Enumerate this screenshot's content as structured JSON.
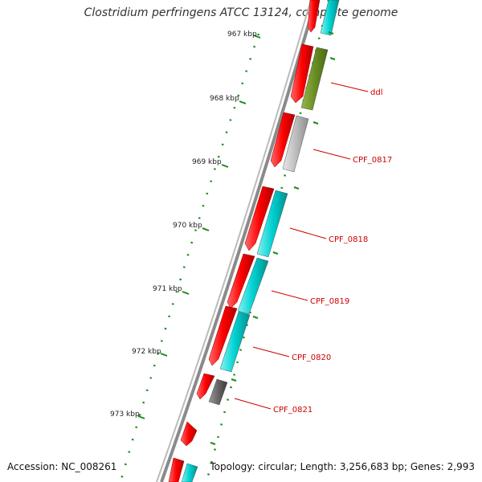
{
  "title": "Clostridium perfringens ATCC 13124, complete genome",
  "accession": "Accession: NC_008261",
  "summary": "Topology: circular; Length: 3,256,683 bp; Genes: 2,993",
  "scale_labels": [
    "967 kbp",
    "968 kbp",
    "969 kbp",
    "970 kbp",
    "971 kbp",
    "972 kbp",
    "973 kbp"
  ],
  "gene_labels": [
    "ddl",
    "CPF_0817",
    "CPF_0818",
    "CPF_0819",
    "CPF_0820",
    "CPF_0821"
  ],
  "colors": {
    "cds": "#ff0000",
    "cog_cyan": "#00cccc",
    "cog_olive": "#6b8e23",
    "cog_light_gray": "#bdbdbd",
    "cog_dark_gray": "#666666",
    "backbone": "#808080",
    "ticks": "#1a8a1a",
    "label": "#cc0000"
  }
}
